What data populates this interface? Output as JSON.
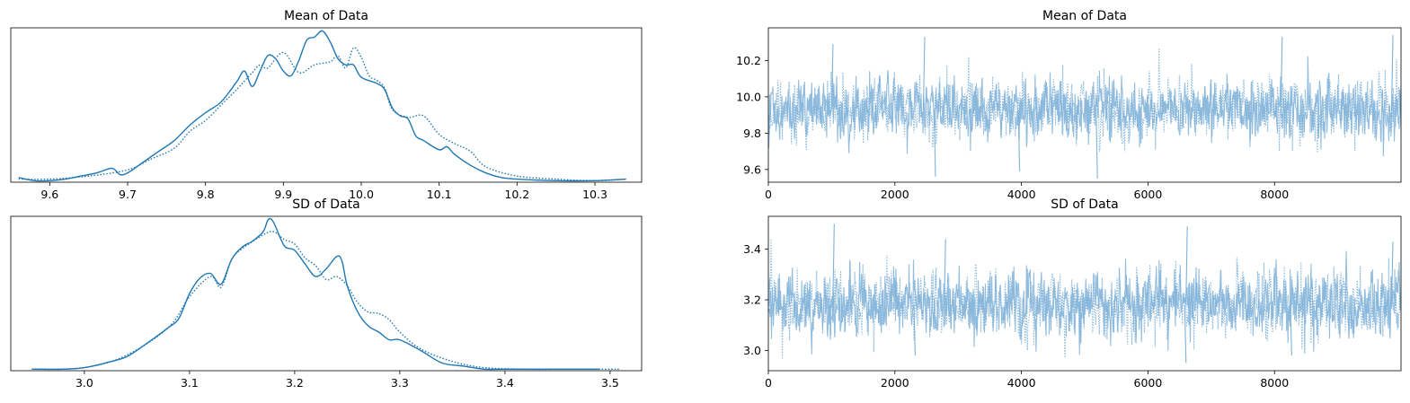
{
  "colors": {
    "kde": "#1f77b4",
    "trace": "#7fb2d8"
  },
  "chart_data": [
    {
      "type": "line",
      "title": "Mean of Data",
      "xlim": [
        9.55,
        10.36
      ],
      "ylim": [
        0,
        1.0
      ],
      "xticks": [
        9.6,
        9.7,
        9.8,
        9.9,
        10.0,
        10.1,
        10.2,
        10.3
      ],
      "xtick_labels": [
        "9.6",
        "9.7",
        "9.8",
        "9.9",
        "10.0",
        "10.1",
        "10.2",
        "10.3"
      ],
      "y_ticks_shown": false,
      "series": [
        {
          "style": "solid",
          "x": [
            9.56,
            9.58,
            9.6,
            9.62,
            9.64,
            9.66,
            9.68,
            9.69,
            9.7,
            9.72,
            9.74,
            9.76,
            9.78,
            9.8,
            9.82,
            9.84,
            9.85,
            9.86,
            9.87,
            9.88,
            9.89,
            9.9,
            9.91,
            9.92,
            9.93,
            9.94,
            9.95,
            9.96,
            9.97,
            9.98,
            9.99,
            10.0,
            10.02,
            10.03,
            10.04,
            10.05,
            10.06,
            10.07,
            10.08,
            10.1,
            10.11,
            10.12,
            10.14,
            10.16,
            10.18,
            10.2,
            10.25,
            10.3,
            10.34
          ],
          "y": [
            0.03,
            0.01,
            0.01,
            0.02,
            0.04,
            0.06,
            0.09,
            0.05,
            0.06,
            0.13,
            0.2,
            0.27,
            0.37,
            0.45,
            0.52,
            0.65,
            0.72,
            0.62,
            0.72,
            0.82,
            0.8,
            0.72,
            0.69,
            0.79,
            0.92,
            0.94,
            0.98,
            0.91,
            0.8,
            0.76,
            0.76,
            0.68,
            0.64,
            0.6,
            0.48,
            0.43,
            0.41,
            0.3,
            0.27,
            0.21,
            0.23,
            0.18,
            0.11,
            0.06,
            0.03,
            0.02,
            0.01,
            0.01,
            0.02
          ]
        },
        {
          "style": "dotted",
          "x": [
            9.56,
            9.6,
            9.65,
            9.7,
            9.73,
            9.76,
            9.78,
            9.8,
            9.82,
            9.84,
            9.86,
            9.87,
            9.88,
            9.9,
            9.92,
            9.94,
            9.96,
            9.97,
            9.98,
            9.99,
            10.0,
            10.01,
            10.02,
            10.03,
            10.04,
            10.06,
            10.08,
            10.1,
            10.12,
            10.14,
            10.16,
            10.2,
            10.25,
            10.3,
            10.34
          ],
          "y": [
            0.02,
            0.02,
            0.04,
            0.08,
            0.15,
            0.22,
            0.33,
            0.4,
            0.5,
            0.6,
            0.71,
            0.76,
            0.74,
            0.84,
            0.71,
            0.76,
            0.78,
            0.82,
            0.74,
            0.87,
            0.81,
            0.69,
            0.66,
            0.61,
            0.47,
            0.42,
            0.43,
            0.31,
            0.25,
            0.2,
            0.1,
            0.04,
            0.02,
            0.01,
            0.02
          ]
        }
      ]
    },
    {
      "type": "line",
      "title": "Mean of Data",
      "xlim": [
        0,
        9999
      ],
      "ylim": [
        9.53,
        10.38
      ],
      "xticks": [
        0,
        2000,
        4000,
        6000,
        8000
      ],
      "xtick_labels": [
        "0",
        "2000",
        "4000",
        "6000",
        "8000"
      ],
      "yticks": [
        9.6,
        9.8,
        10.0,
        10.2
      ],
      "ytick_labels": [
        "9.6",
        "9.8",
        "10.0",
        "10.2"
      ],
      "series_center": 9.93,
      "series_spread": 0.09,
      "notable_peaks": [
        [
          1000,
          10.29
        ],
        [
          2450,
          10.33
        ],
        [
          8100,
          10.33
        ],
        [
          9850,
          10.34
        ]
      ],
      "notable_troughs": [
        [
          2620,
          9.56
        ],
        [
          5180,
          9.55
        ],
        [
          3950,
          9.59
        ]
      ]
    },
    {
      "type": "line",
      "title": "SD of Data",
      "xlim": [
        2.93,
        3.53
      ],
      "ylim": [
        0,
        1.0
      ],
      "xticks": [
        3.0,
        3.1,
        3.2,
        3.3,
        3.4,
        3.5
      ],
      "xtick_labels": [
        "3.0",
        "3.1",
        "3.2",
        "3.3",
        "3.4",
        "3.5"
      ],
      "y_ticks_shown": false,
      "series": [
        {
          "style": "solid",
          "x": [
            2.95,
            2.98,
            3.0,
            3.02,
            3.04,
            3.06,
            3.08,
            3.09,
            3.1,
            3.11,
            3.12,
            3.13,
            3.14,
            3.15,
            3.16,
            3.17,
            3.175,
            3.18,
            3.19,
            3.2,
            3.21,
            3.22,
            3.23,
            3.24,
            3.245,
            3.25,
            3.26,
            3.27,
            3.28,
            3.29,
            3.3,
            3.32,
            3.34,
            3.36,
            3.38,
            3.4,
            3.45,
            3.49
          ],
          "y": [
            0.01,
            0.01,
            0.02,
            0.05,
            0.09,
            0.18,
            0.28,
            0.34,
            0.5,
            0.6,
            0.63,
            0.56,
            0.72,
            0.8,
            0.84,
            0.9,
            0.98,
            0.96,
            0.81,
            0.78,
            0.69,
            0.61,
            0.66,
            0.74,
            0.71,
            0.55,
            0.38,
            0.29,
            0.25,
            0.2,
            0.2,
            0.13,
            0.05,
            0.03,
            0.01,
            0.01,
            0.01,
            0.01
          ]
        },
        {
          "style": "dotted",
          "x": [
            2.95,
            3.0,
            3.04,
            3.08,
            3.1,
            3.12,
            3.13,
            3.14,
            3.15,
            3.17,
            3.18,
            3.19,
            3.2,
            3.21,
            3.22,
            3.23,
            3.24,
            3.25,
            3.26,
            3.27,
            3.28,
            3.29,
            3.3,
            3.32,
            3.35,
            3.38,
            3.42,
            3.46,
            3.51
          ],
          "y": [
            0.01,
            0.02,
            0.1,
            0.28,
            0.48,
            0.61,
            0.54,
            0.72,
            0.79,
            0.88,
            0.9,
            0.85,
            0.82,
            0.73,
            0.68,
            0.59,
            0.61,
            0.55,
            0.44,
            0.38,
            0.37,
            0.33,
            0.25,
            0.14,
            0.06,
            0.02,
            0.01,
            0.01,
            0.01
          ]
        }
      ]
    },
    {
      "type": "line",
      "title": "SD of Data",
      "xlim": [
        0,
        9999
      ],
      "ylim": [
        2.92,
        3.53
      ],
      "xticks": [
        0,
        2000,
        4000,
        6000,
        8000
      ],
      "xtick_labels": [
        "0",
        "2000",
        "4000",
        "6000",
        "8000"
      ],
      "yticks": [
        3.0,
        3.2,
        3.4
      ],
      "ytick_labels": [
        "3.0",
        "3.2",
        "3.4"
      ],
      "series_center": 3.18,
      "series_spread": 0.07,
      "notable_peaks": [
        [
          1020,
          3.5
        ],
        [
          6600,
          3.49
        ],
        [
          2780,
          3.44
        ],
        [
          9850,
          3.43
        ]
      ],
      "notable_troughs": [
        [
          6580,
          2.95
        ],
        [
          8250,
          2.98
        ],
        [
          2300,
          2.98
        ]
      ]
    }
  ]
}
